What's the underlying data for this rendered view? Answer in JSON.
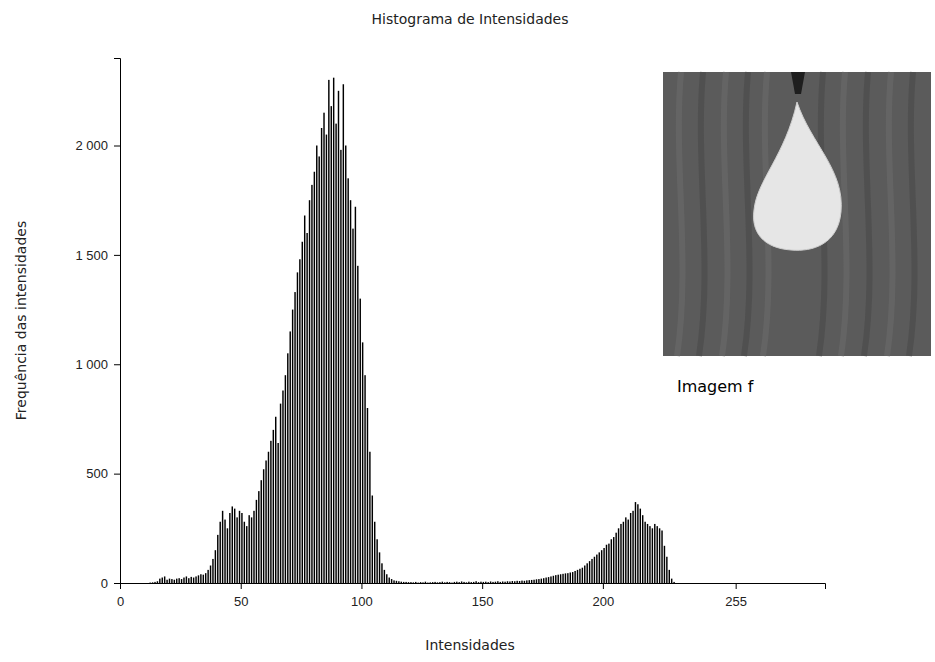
{
  "chart_data": {
    "type": "histogram",
    "title": "Histograma de Intensidades",
    "x_label": "Intensidades",
    "y_label": "Frequência das intensidades",
    "annotations": [
      "Imagem f"
    ],
    "color": "#000000",
    "grid": false,
    "xlim": [
      0,
      292
    ],
    "xticks": [
      0,
      50,
      100,
      150,
      200,
      255
    ],
    "ylim": [
      0,
      2400
    ],
    "yticks": [
      0,
      500,
      {
        "value": 1000,
        "label": "1 000"
      },
      {
        "value": 1500,
        "label": "1 500"
      },
      {
        "value": 2000,
        "label": "2 000"
      }
    ],
    "bins": [
      0,
      1,
      2,
      3,
      4,
      5,
      6,
      7,
      8,
      9,
      10,
      11,
      12,
      13,
      14,
      15,
      16,
      17,
      18,
      19,
      20,
      21,
      22,
      23,
      24,
      25,
      26,
      27,
      28,
      29,
      30,
      31,
      32,
      33,
      34,
      35,
      36,
      37,
      38,
      39,
      40,
      41,
      42,
      43,
      44,
      45,
      46,
      47,
      48,
      49,
      50,
      51,
      52,
      53,
      54,
      55,
      56,
      57,
      58,
      59,
      60,
      61,
      62,
      63,
      64,
      65,
      66,
      67,
      68,
      69,
      70,
      71,
      72,
      73,
      74,
      75,
      76,
      77,
      78,
      79,
      80,
      81,
      82,
      83,
      84,
      85,
      86,
      87,
      88,
      89,
      90,
      91,
      92,
      93,
      94,
      95,
      96,
      97,
      98,
      99,
      100,
      101,
      102,
      103,
      104,
      105,
      106,
      107,
      108,
      109,
      110,
      111,
      112,
      113,
      114,
      115,
      116,
      117,
      118,
      119,
      120,
      121,
      122,
      123,
      124,
      125,
      126,
      127,
      128,
      129,
      130,
      131,
      132,
      133,
      134,
      135,
      136,
      137,
      138,
      139,
      140,
      141,
      142,
      143,
      144,
      145,
      146,
      147,
      148,
      149,
      150,
      151,
      152,
      153,
      154,
      155,
      156,
      157,
      158,
      159,
      160,
      161,
      162,
      163,
      164,
      165,
      166,
      167,
      168,
      169,
      170,
      171,
      172,
      173,
      174,
      175,
      176,
      177,
      178,
      179,
      180,
      181,
      182,
      183,
      184,
      185,
      186,
      187,
      188,
      189,
      190,
      191,
      192,
      193,
      194,
      195,
      196,
      197,
      198,
      199,
      200,
      201,
      202,
      203,
      204,
      205,
      206,
      207,
      208,
      209,
      210,
      211,
      212,
      213,
      214,
      215,
      216,
      217,
      218,
      219,
      220,
      221,
      222,
      223,
      224,
      225,
      226,
      227,
      228,
      229,
      230,
      231,
      232,
      233,
      234,
      235,
      236,
      237,
      238,
      239,
      240,
      241,
      242,
      243,
      244,
      245,
      246,
      247,
      248,
      249,
      250,
      251,
      252,
      253,
      254,
      255,
      256
    ],
    "values": [
      0,
      0,
      0,
      0,
      0,
      0,
      0,
      0,
      0,
      0,
      0,
      0,
      2,
      3,
      5,
      8,
      20,
      25,
      30,
      15,
      20,
      18,
      15,
      20,
      22,
      18,
      25,
      30,
      22,
      28,
      25,
      30,
      35,
      40,
      38,
      45,
      60,
      80,
      110,
      150,
      220,
      280,
      330,
      290,
      250,
      320,
      350,
      340,
      300,
      330,
      320,
      280,
      260,
      310,
      300,
      330,
      380,
      420,
      470,
      520,
      560,
      600,
      650,
      700,
      760,
      640,
      820,
      880,
      950,
      1050,
      1150,
      1250,
      1330,
      1420,
      1480,
      1560,
      1680,
      1600,
      1750,
      1820,
      1880,
      2000,
      1950,
      2080,
      2150,
      2050,
      2300,
      2180,
      2310,
      2100,
      2250,
      1980,
      2280,
      2000,
      1850,
      1750,
      1620,
      1720,
      1450,
      1300,
      1100,
      950,
      800,
      600,
      400,
      280,
      200,
      140,
      90,
      60,
      40,
      25,
      18,
      12,
      10,
      8,
      6,
      5,
      5,
      4,
      4,
      3,
      5,
      2,
      4,
      3,
      6,
      2,
      3,
      4,
      5,
      3,
      4,
      6,
      3,
      5,
      4,
      2,
      5,
      6,
      4,
      7,
      5,
      3,
      6,
      4,
      5,
      8,
      4,
      6,
      5,
      6,
      4,
      7,
      5,
      6,
      8,
      5,
      7,
      6,
      8,
      7,
      9,
      8,
      10,
      9,
      11,
      10,
      12,
      13,
      14,
      15,
      17,
      18,
      20,
      22,
      25,
      27,
      30,
      33,
      36,
      38,
      40,
      42,
      44,
      45,
      48,
      50,
      55,
      60,
      65,
      70,
      80,
      90,
      100,
      110,
      120,
      130,
      140,
      150,
      160,
      175,
      180,
      200,
      210,
      230,
      250,
      270,
      280,
      300,
      290,
      320,
      330,
      370,
      360,
      340,
      310,
      280,
      270,
      260,
      250,
      270,
      260,
      250,
      240,
      170,
      120,
      60,
      20,
      5,
      0,
      0,
      0,
      0,
      0,
      0,
      0,
      0,
      0,
      0,
      0,
      0,
      0,
      0,
      0,
      0,
      0,
      0,
      0,
      0,
      0,
      0,
      0,
      0,
      0,
      0
    ]
  }
}
